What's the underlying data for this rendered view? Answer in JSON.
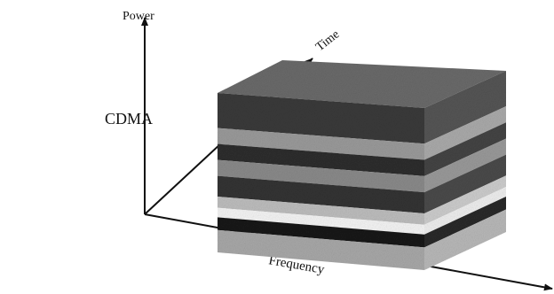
{
  "label": "CDMA",
  "axes": {
    "power": "Power",
    "time": "Time",
    "frequency": "Frequency"
  }
}
